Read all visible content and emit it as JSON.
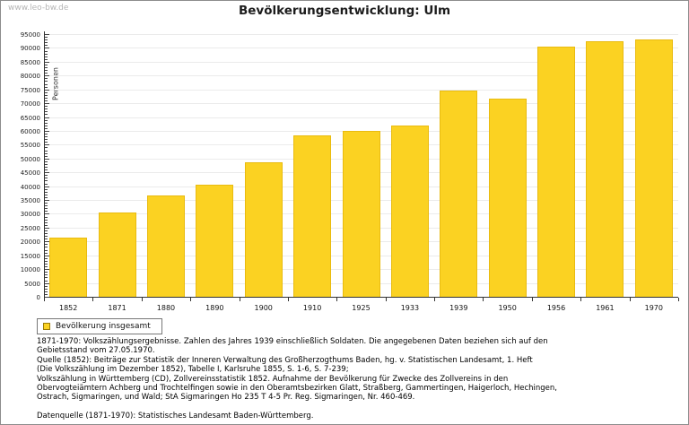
{
  "page": {
    "watermark": "www.leo-bw.de",
    "title": "Bevölkerungsentwicklung: Ulm"
  },
  "chart_data": {
    "type": "bar",
    "title": "Bevölkerungsentwicklung: Ulm",
    "ylabel": "Personen",
    "xlabel": "",
    "categories": [
      "1852",
      "1871",
      "1880",
      "1890",
      "1900",
      "1910",
      "1925",
      "1933",
      "1939",
      "1950",
      "1956",
      "1961",
      "1970"
    ],
    "values": [
      21500,
      30500,
      36500,
      40500,
      48500,
      58500,
      60000,
      62000,
      74500,
      71500,
      90500,
      92500,
      93000
    ],
    "series_name": "Bevölkerung insgesamt",
    "ylim": [
      0,
      95000
    ],
    "ytick_step": 5000,
    "yminor_step": 1000,
    "grid": true,
    "legend_position": "bottom-left",
    "bar_color": "#FBD222",
    "bar_border_color": "#E9BB10"
  },
  "legend": {
    "label": "Bevölkerung insgesamt"
  },
  "footer": {
    "lines": [
      "1871-1970: Volkszählungsergebnisse. Zahlen des Jahres 1939 einschließlich Soldaten. Die angegebenen Daten beziehen sich auf den",
      "Gebietsstand vom 27.05.1970.",
      "Quelle (1852): Beiträge zur Statistik der Inneren Verwaltung des Großherzogthums Baden, hg. v. Statistischen Landesamt, 1. Heft",
      "(Die Volkszählung im Dezember 1852), Tabelle I, Karlsruhe 1855, S. 1-6, S. 7-239;",
      "Volkszählung in Württemberg (CD), Zollvereinsstatistik 1852. Aufnahme der Bevölkerung für Zwecke des Zollvereins in den",
      "Obervogteiämtern Achberg und Trochtelfingen sowie in den Oberamtsbezirken Glatt, Straßberg, Gammertingen, Haigerloch, Hechingen,",
      "Ostrach, Sigmaringen, und Wald; StA Sigmaringen Ho 235 T 4-5 Pr. Reg. Sigmaringen, Nr. 460-469."
    ],
    "datasource": "Datenquelle (1871-1970): Statistisches Landesamt Baden-Württemberg."
  }
}
